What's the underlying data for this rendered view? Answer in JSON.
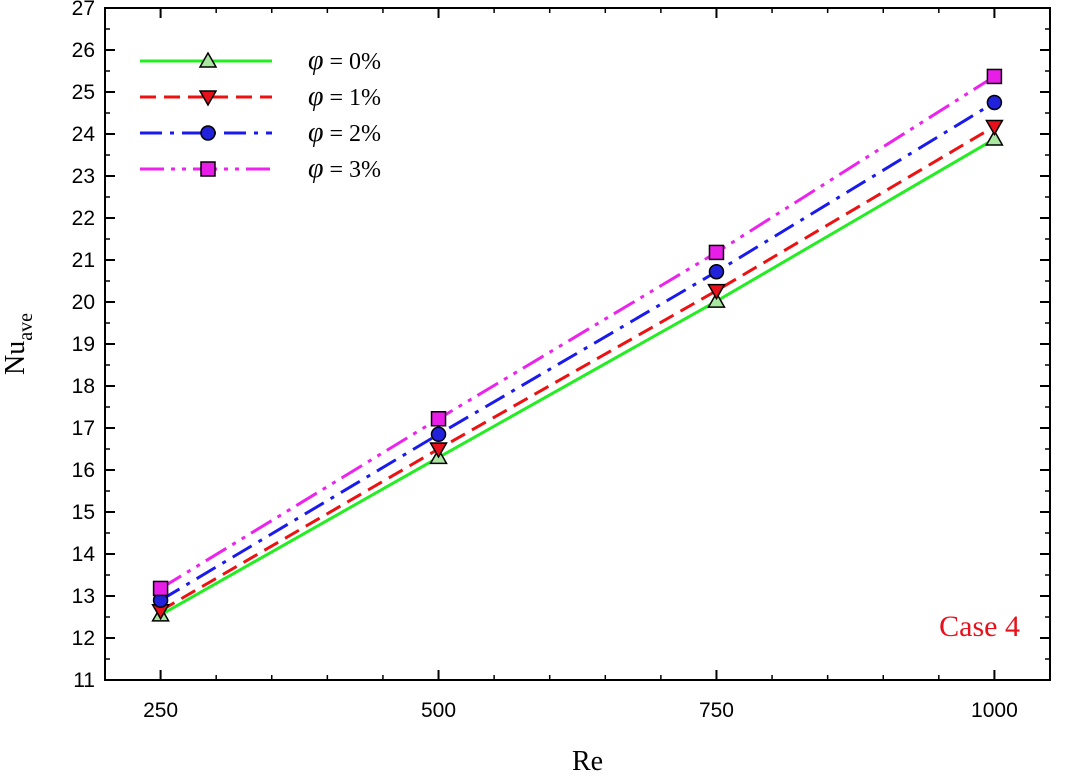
{
  "chart_data": {
    "type": "line",
    "xlabel": "Re",
    "ylabel": "Nu",
    "ylabel_sub": "ave",
    "x": [
      250,
      500,
      750,
      1000
    ],
    "x_ticks": [
      250,
      500,
      750,
      1000
    ],
    "xlim": [
      200,
      1050
    ],
    "ylim": [
      11,
      27
    ],
    "y_ticks": [
      11,
      12,
      13,
      14,
      15,
      16,
      17,
      18,
      19,
      20,
      21,
      22,
      23,
      24,
      25,
      26,
      27
    ],
    "legend_position": "top-left",
    "annotation": "Case 4",
    "annotation_color": "#e8101a",
    "series": [
      {
        "name": "φ = 0%",
        "values": [
          12.55,
          16.3,
          20.02,
          23.88
        ],
        "color": "#22ee22",
        "dash": "solid",
        "marker": "triangle-up",
        "marker_fill": "#a9e6a0"
      },
      {
        "name": "φ = 1%",
        "values": [
          12.65,
          16.5,
          20.27,
          24.18
        ],
        "color": "#ee1111",
        "dash": "dashed",
        "marker": "triangle-down",
        "marker_fill": "#e8101a"
      },
      {
        "name": "φ = 2%",
        "values": [
          12.9,
          16.85,
          20.72,
          24.75
        ],
        "color": "#1a1aee",
        "dash": "dash-dot",
        "marker": "circle",
        "marker_fill": "#2222dd"
      },
      {
        "name": "φ = 3%",
        "values": [
          13.18,
          17.22,
          21.18,
          25.37
        ],
        "color": "#ee22ee",
        "dash": "dash-dot-dot",
        "marker": "square",
        "marker_fill": "#e81ee8"
      }
    ]
  }
}
